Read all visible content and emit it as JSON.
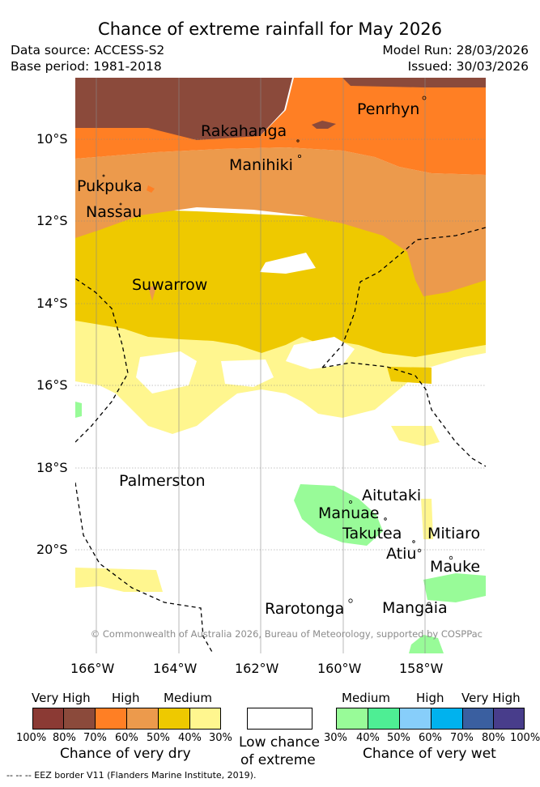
{
  "title": "Chance of extreme rainfall for May 2026",
  "meta": {
    "data_source": "Data source: ACCESS-S2",
    "base_period": "Base period: 1981-2018",
    "model_run": "Model Run: 28/03/2026",
    "issued": "Issued: 30/03/2026"
  },
  "map": {
    "lat_labels": [
      "10°S",
      "12°S",
      "14°S",
      "16°S",
      "18°S",
      "20°S"
    ],
    "lon_labels": [
      "166°W",
      "164°W",
      "162°W",
      "160°W",
      "158°W"
    ],
    "places": {
      "penrhyn": "Penrhyn",
      "rakahanga": "Rakahanga",
      "manihiki": "Manihiki",
      "pukpuka": "Pukpuka",
      "nassau": "Nassau",
      "suwarrow": "Suwarrow",
      "palmerston": "Palmerston",
      "aitutaki": "Aitutaki",
      "manuae": "Manuae",
      "takutea": "Takutea",
      "mitiaro": "Mitiaro",
      "atiu": "Atiu",
      "mauke": "Mauke",
      "rarotonga": "Rarotonga",
      "mangaia": "Mangaia"
    },
    "copyright": "© Commonwealth of Australia 2026, Bureau of Meteorology, supported by COSPPac",
    "colors": {
      "very_high_dry_100": "#8b3a34",
      "very_high_dry_80": "#8b4a3b",
      "high_dry_70": "#ff7f24",
      "high_dry_60": "#ec9a4c",
      "medium_dry_50": "#eec900",
      "medium_dry_40": "#fff68f",
      "low": "#ffffff",
      "medium_wet_30": "#98fb98",
      "medium_wet_40": "#4eee94",
      "high_wet_50": "#87cefa",
      "high_wet_60": "#00b2ee",
      "very_high_wet_70": "#3a5fa0",
      "very_high_wet_80": "#483d8b"
    }
  },
  "legend": {
    "dry": {
      "headers": [
        "Very High",
        "High",
        "Medium"
      ],
      "ticks": [
        "100%",
        "80%",
        "70%",
        "60%",
        "50%",
        "40%",
        "30%"
      ],
      "caption": "Chance of very dry"
    },
    "low": {
      "caption_line1": "Low chance",
      "caption_line2": "of extreme"
    },
    "wet": {
      "headers": [
        "Medium",
        "High",
        "Very High"
      ],
      "ticks": [
        "30%",
        "40%",
        "50%",
        "60%",
        "70%",
        "80%",
        "100%"
      ],
      "caption": "Chance of very wet"
    }
  },
  "eez_note": "--  --  -- EEZ border V11 (Flanders Marine Institute, 2019)."
}
